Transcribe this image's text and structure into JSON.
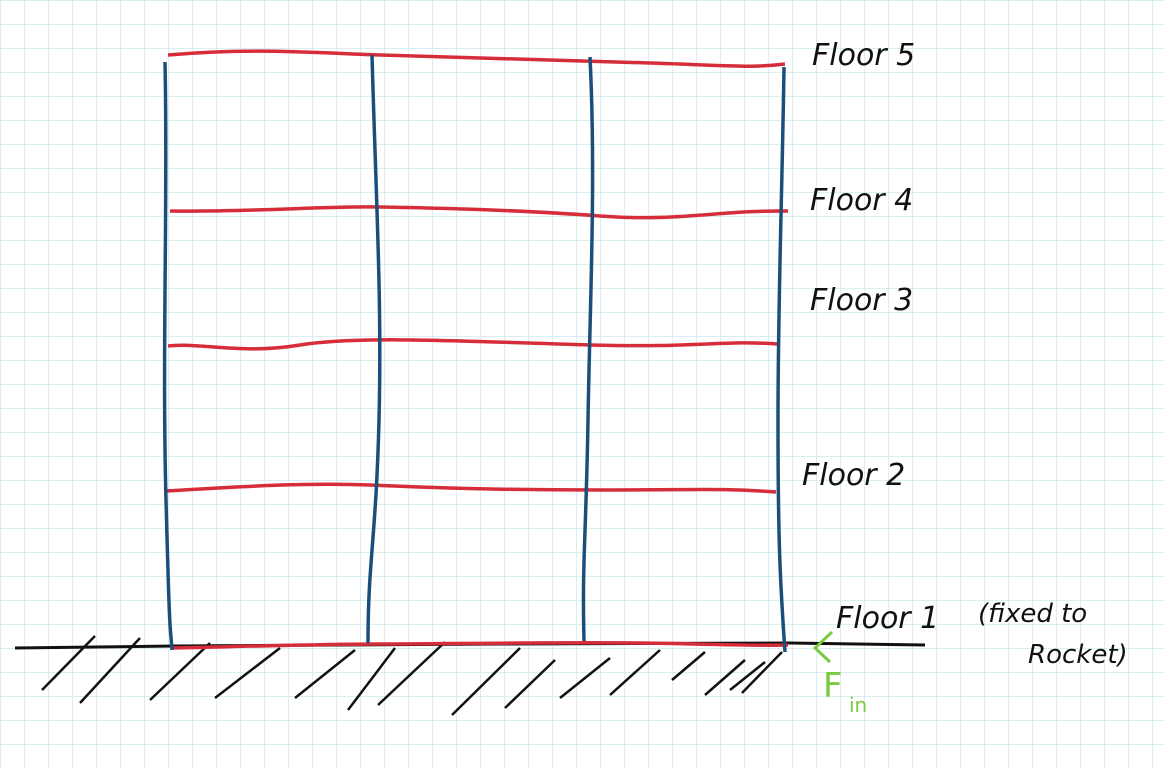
{
  "floors": [
    {
      "label": "Floor 5"
    },
    {
      "label": "Floor 4"
    },
    {
      "label": "Floor 3"
    },
    {
      "label": "Floor 2"
    },
    {
      "label": "Floor 1"
    }
  ],
  "ground_note": [
    "(fixed to",
    "Rocket)"
  ],
  "force": {
    "symbol": "F",
    "subscript": "in"
  },
  "colors": {
    "grid": "#cfe8f0",
    "floor_line": "#d62d3a",
    "column": "#1b4f7a",
    "ground": "#111111",
    "force": "#7ac943"
  }
}
